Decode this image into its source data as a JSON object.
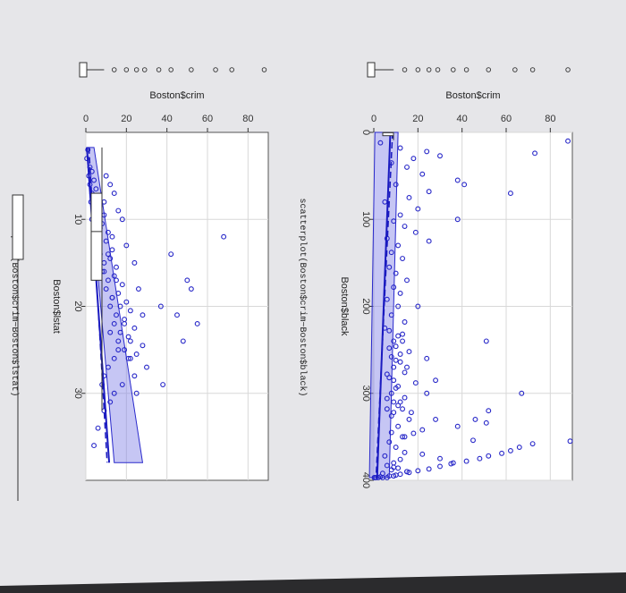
{
  "chart_data": [
    {
      "type": "scatter",
      "title": "scatterplot(Boston$crim~Boston$black)",
      "xlabel": "Boston$black",
      "ylabel": "Boston$crim",
      "xlim": [
        0,
        400
      ],
      "ylim": [
        0,
        90
      ],
      "x_ticks": [
        0,
        100,
        200,
        300,
        400
      ],
      "y_ticks": [
        0,
        20,
        40,
        60,
        80
      ],
      "grid": true,
      "x": [
        12,
        18,
        22,
        27,
        30,
        35,
        40,
        48,
        55,
        60,
        68,
        75,
        80,
        88,
        95,
        102,
        108,
        115,
        122,
        130,
        138,
        145,
        155,
        162,
        170,
        178,
        185,
        192,
        200,
        210,
        218,
        225,
        232,
        240,
        248,
        255,
        262,
        270,
        278,
        285,
        292,
        300,
        305,
        310,
        318,
        322,
        330,
        338,
        345,
        350,
        356,
        362,
        368,
        372,
        376,
        380,
        383,
        386,
        388,
        390,
        392,
        394,
        395,
        396,
        396.9,
        396.9,
        396.9,
        396.9,
        396.9,
        396.9,
        395,
        393,
        391,
        389,
        387,
        384,
        381,
        378,
        375,
        372,
        369,
        366,
        362,
        358,
        354,
        350,
        346,
        342,
        338,
        334,
        330,
        326,
        322,
        318,
        314,
        310,
        306,
        300,
        294,
        288,
        282,
        276,
        270,
        264,
        258,
        252,
        246,
        240,
        234,
        228,
        24,
        10,
        60,
        70,
        300,
        355,
        320,
        330,
        380,
        385,
        240,
        125,
        285,
        200,
        260,
        100,
        370,
        375,
        390
      ],
      "y": [
        3,
        12,
        24,
        30,
        18,
        8,
        15,
        22,
        38,
        10,
        25,
        16,
        5,
        20,
        12,
        9,
        14,
        19,
        6,
        11,
        8,
        13,
        7,
        10,
        15,
        9,
        12,
        6,
        11,
        8,
        14,
        5,
        13,
        9,
        7,
        12,
        10,
        15,
        6,
        9,
        11,
        8,
        14,
        12,
        6,
        9,
        16,
        11,
        8,
        13,
        7,
        10,
        14,
        5,
        12,
        9,
        6,
        11,
        8,
        15,
        4,
        10,
        7,
        3,
        1,
        2,
        0.5,
        0.2,
        4,
        6,
        9,
        12,
        16,
        20,
        25,
        30,
        35,
        42,
        48,
        52,
        58,
        62,
        66,
        72,
        45,
        14,
        18,
        22,
        38,
        51,
        28,
        8,
        17,
        13,
        11,
        9,
        6,
        24,
        10,
        19,
        7,
        14,
        9,
        12,
        8,
        16,
        10,
        13,
        11,
        7,
        73,
        88,
        41,
        62,
        67,
        89,
        52,
        46,
        36,
        9,
        51,
        25,
        28,
        20,
        24,
        38,
        22,
        30,
        15
      ],
      "band": [
        [
          0,
          0.5,
          11
        ],
        [
          396.9,
          -2,
          7
        ],
        [
          396.9,
          0.5,
          7
        ],
        [
          0,
          0.5,
          11
        ]
      ],
      "fit_line": [
        [
          0,
          7.5
        ],
        [
          396.9,
          1.5
        ]
      ],
      "dash_line": [
        [
          0,
          8.5
        ],
        [
          396.9,
          1.0
        ]
      ],
      "marginal_boxplot": {
        "min": 0,
        "q1": 0.2,
        "median": 0.3,
        "q3": 3.8,
        "max": 9
      }
    },
    {
      "type": "scatter",
      "title": "scatterplot(Boston$crim~Boston$lstat)",
      "xlabel": "Boston$lstat",
      "ylabel": "Boston$crim",
      "xlim": [
        0,
        40
      ],
      "ylim": [
        0,
        90
      ],
      "x_ticks": [
        10,
        20,
        30
      ],
      "y_ticks": [
        0,
        20,
        40,
        60,
        80
      ],
      "grid": true,
      "x": [
        2,
        3,
        4,
        4.5,
        5,
        5.5,
        6,
        6.5,
        7,
        7.5,
        8,
        8.5,
        9,
        9.5,
        10,
        10.5,
        11,
        11.5,
        12,
        12.5,
        13,
        13.5,
        14,
        14.5,
        15,
        15.5,
        16,
        16.5,
        17,
        17.5,
        18,
        18.5,
        19,
        19.5,
        20,
        20.5,
        21,
        21.5,
        22,
        22.5,
        23,
        23.5,
        24,
        24.5,
        25,
        25.5,
        26,
        27,
        28,
        29,
        30,
        31,
        32,
        34,
        36,
        5,
        6,
        7,
        8,
        9,
        10,
        11,
        12,
        13,
        14,
        15,
        16,
        17,
        18,
        19,
        20,
        21,
        22,
        23,
        24,
        25,
        26,
        27,
        28,
        29,
        30,
        14,
        18,
        20,
        21,
        22,
        24,
        26,
        29,
        17,
        12
      ],
      "y": [
        1,
        0.5,
        2,
        3,
        1.5,
        4,
        2,
        5,
        3,
        6,
        2.5,
        7,
        4,
        9,
        3,
        8,
        5,
        11,
        6,
        10,
        4,
        13,
        7,
        12,
        9,
        15,
        8,
        14,
        11,
        18,
        10,
        16,
        13,
        20,
        12,
        22,
        15,
        19,
        14,
        24,
        17,
        21,
        16,
        28,
        19,
        25,
        22,
        30,
        24,
        18,
        14,
        12,
        9,
        6,
        4,
        10,
        12,
        14,
        9,
        16,
        18,
        7,
        13,
        20,
        11,
        24,
        9,
        15,
        26,
        13,
        17,
        28,
        19,
        12,
        22,
        16,
        14,
        11,
        9,
        8,
        25,
        42,
        52,
        37,
        45,
        55,
        48,
        21,
        38,
        50,
        68
      ],
      "band": [
        [
          1.73,
          0.5,
          4
        ],
        [
          37.97,
          14,
          28
        ],
        [
          37.97,
          14,
          28
        ],
        [
          1.73,
          0.5,
          4
        ]
      ],
      "fit_line": [
        [
          1.73,
          0.5
        ],
        [
          37.97,
          11.5
        ]
      ],
      "dash_line": [
        [
          1.73,
          1.5
        ],
        [
          37.97,
          10.5
        ]
      ],
      "marginal_boxplot": {
        "min": 1.73,
        "q1": 7,
        "median": 11.4,
        "q3": 17,
        "max": 32
      }
    }
  ]
}
